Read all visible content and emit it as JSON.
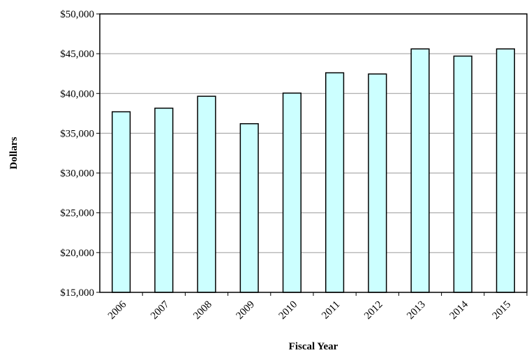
{
  "chart_data": {
    "type": "bar",
    "title": "",
    "xlabel": "Fiscal Year",
    "ylabel": "Dollars",
    "categories": [
      "2006",
      "2007",
      "2008",
      "2009",
      "2010",
      "2011",
      "2012",
      "2013",
      "2014",
      "2015"
    ],
    "values": [
      37700,
      38150,
      39650,
      36200,
      40050,
      42600,
      42450,
      45600,
      44700,
      45600
    ],
    "ylim": [
      15000,
      50000
    ],
    "yticks": [
      15000,
      20000,
      25000,
      30000,
      35000,
      40000,
      45000,
      50000
    ],
    "ytick_labels": [
      "$15,000",
      "$20,000",
      "$25,000",
      "$30,000",
      "$35,000",
      "$40,000",
      "$45,000",
      "$50,000"
    ],
    "grid": true,
    "legend": "none",
    "colors": {
      "bar_fill": "#ccffff",
      "bar_stroke": "#000000",
      "grid": "#9a9a9a"
    }
  }
}
